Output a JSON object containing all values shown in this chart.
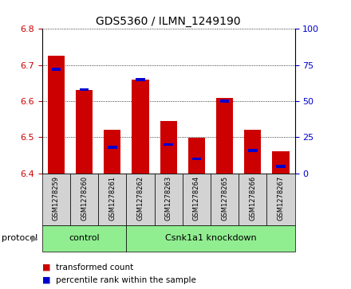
{
  "title": "GDS5360 / ILMN_1249190",
  "samples": [
    "GSM1278259",
    "GSM1278260",
    "GSM1278261",
    "GSM1278262",
    "GSM1278263",
    "GSM1278264",
    "GSM1278265",
    "GSM1278266",
    "GSM1278267"
  ],
  "transformed_count": [
    6.725,
    6.63,
    6.52,
    6.66,
    6.545,
    6.498,
    6.61,
    6.52,
    6.462
  ],
  "percentile_rank": [
    72,
    58,
    18,
    65,
    20,
    10,
    50,
    16,
    5
  ],
  "ylim_left": [
    6.4,
    6.8
  ],
  "ylim_right": [
    0,
    100
  ],
  "yticks_left": [
    6.4,
    6.5,
    6.6,
    6.7,
    6.8
  ],
  "yticks_right": [
    0,
    25,
    50,
    75,
    100
  ],
  "bar_bottom": 6.4,
  "red_color": "#cc0000",
  "blue_color": "#0000cc",
  "control_samples": 3,
  "control_label": "control",
  "knockdown_label": "Csnk1a1 knockdown",
  "group_color": "#90ee90",
  "protocol_label": "protocol",
  "legend_items": [
    {
      "label": "transformed count",
      "color": "#cc0000"
    },
    {
      "label": "percentile rank within the sample",
      "color": "#0000cc"
    }
  ],
  "tick_label_color_left": "#cc0000",
  "tick_label_color_right": "#0000cc",
  "bar_width": 0.6,
  "sample_bg_color": "#d3d3d3",
  "title_fontsize": 10
}
